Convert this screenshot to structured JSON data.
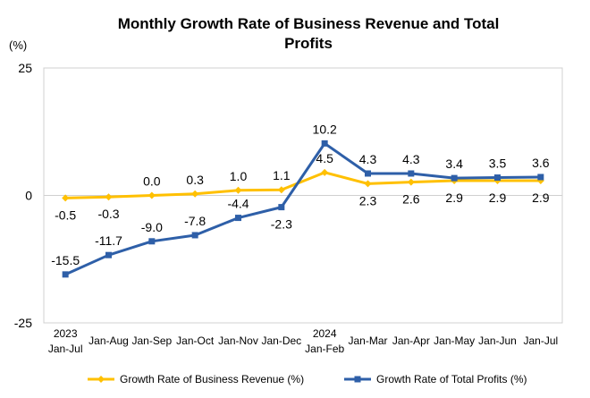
{
  "chart_data": {
    "type": "line",
    "title_lines": [
      "Monthly Growth Rate of Business Revenue and Total",
      "Profits"
    ],
    "unit_label": "(%)",
    "ylim": [
      -25,
      25
    ],
    "y_ticks": [
      25,
      0,
      -25
    ],
    "y_tick_labels": [
      "25",
      "0",
      "-25"
    ],
    "categories": [
      [
        "2023",
        "Jan-Jul"
      ],
      [
        "Jan-Aug"
      ],
      [
        "Jan-Sep"
      ],
      [
        "Jan-Oct"
      ],
      [
        "Jan-Nov"
      ],
      [
        "Jan-Dec"
      ],
      [
        "2024",
        "Jan-Feb"
      ],
      [
        "Jan-Mar"
      ],
      [
        "Jan-Apr"
      ],
      [
        "Jan-May"
      ],
      [
        "Jan-Jun"
      ],
      [
        "Jan-Jul"
      ]
    ],
    "series": [
      {
        "name": "Growth Rate of Business Revenue (%)",
        "color": "#FFC000",
        "values": [
          -0.5,
          -0.3,
          0.0,
          0.3,
          1.0,
          1.1,
          4.5,
          2.3,
          2.6,
          2.9,
          2.9,
          2.9
        ],
        "labels": [
          "-0.5",
          "-0.3",
          "0.0",
          "0.3",
          "1.0",
          "1.1",
          "4.5",
          "2.3",
          "2.6",
          "2.9",
          "2.9",
          "2.9"
        ],
        "label_pos": [
          "below",
          "below",
          "above",
          "above",
          "above",
          "above",
          "above",
          "below",
          "below",
          "below",
          "below",
          "below"
        ]
      },
      {
        "name": "Growth Rate of Total Profits (%)",
        "color": "#2E5FA8",
        "values": [
          -15.5,
          -11.7,
          -9.0,
          -7.8,
          -4.4,
          -2.3,
          10.2,
          4.3,
          4.3,
          3.4,
          3.5,
          3.6
        ],
        "labels": [
          "-15.5",
          "-11.7",
          "-9.0",
          "-7.8",
          "-4.4",
          "-2.3",
          "10.2",
          "4.3",
          "4.3",
          "3.4",
          "3.5",
          "3.6"
        ],
        "label_pos": [
          "above",
          "above",
          "above",
          "above",
          "above",
          "below",
          "above",
          "above",
          "above",
          "above",
          "above",
          "above"
        ]
      }
    ],
    "legend_position": "bottom",
    "grid": false
  }
}
